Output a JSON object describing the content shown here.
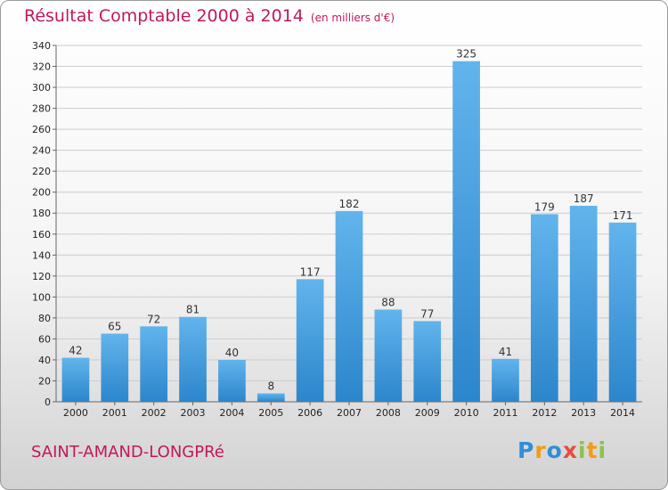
{
  "header": {
    "title": "Résultat Comptable 2000 à 2014",
    "unit": "(en milliers d'€)"
  },
  "footer": {
    "commune": "SAINT-AMAND-LONGPRé",
    "logo_letters": [
      {
        "ch": "P",
        "color": "#2e8fd6"
      },
      {
        "ch": "r",
        "color": "#f39c12"
      },
      {
        "ch": "o",
        "color": "#2e8fd6"
      },
      {
        "ch": "x",
        "color": "#e74c3c"
      },
      {
        "ch": "i",
        "color": "#8bc34a"
      },
      {
        "ch": "t",
        "color": "#f39c12"
      },
      {
        "ch": "i",
        "color": "#8bc34a"
      }
    ]
  },
  "colors": {
    "bar_light": "#62b4ec",
    "bar_dark": "#2c86cc",
    "grid": "#cccccc",
    "title": "#c2185b"
  },
  "chart_data": {
    "type": "bar",
    "title": "Résultat Comptable 2000 à 2014",
    "subtitle": "(en milliers d'€)",
    "categories": [
      "2000",
      "2001",
      "2002",
      "2003",
      "2004",
      "2005",
      "2006",
      "2007",
      "2008",
      "2009",
      "2010",
      "2011",
      "2012",
      "2013",
      "2014"
    ],
    "values": [
      42,
      65,
      72,
      81,
      40,
      8,
      117,
      182,
      88,
      77,
      325,
      41,
      179,
      187,
      171
    ],
    "ylim": [
      0,
      340
    ],
    "yticks": [
      0,
      20,
      40,
      60,
      80,
      100,
      120,
      140,
      160,
      180,
      200,
      220,
      240,
      260,
      280,
      300,
      320,
      340
    ],
    "grid": true,
    "xlabel": "",
    "ylabel": ""
  }
}
